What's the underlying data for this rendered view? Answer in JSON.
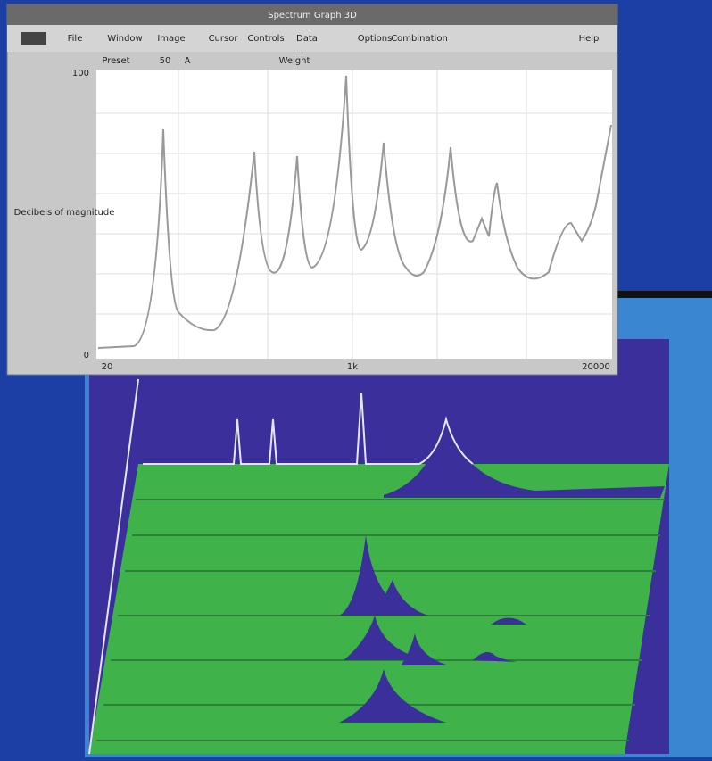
{
  "window": {
    "title": "Spectrum Graph 3D"
  },
  "menu": [
    "File",
    "Window",
    "Image",
    "Cursor",
    "Controls",
    "Data",
    "Options",
    "Combination"
  ],
  "help": "Help",
  "toolbar": [
    "Preset",
    "50",
    "A",
    "Weight"
  ],
  "plot": {
    "y_label": "Decibels of magnitude",
    "y_top": "100",
    "y_bottom": "0",
    "x_left": "20",
    "x_mid": "1k",
    "x_right": "20000"
  }
}
